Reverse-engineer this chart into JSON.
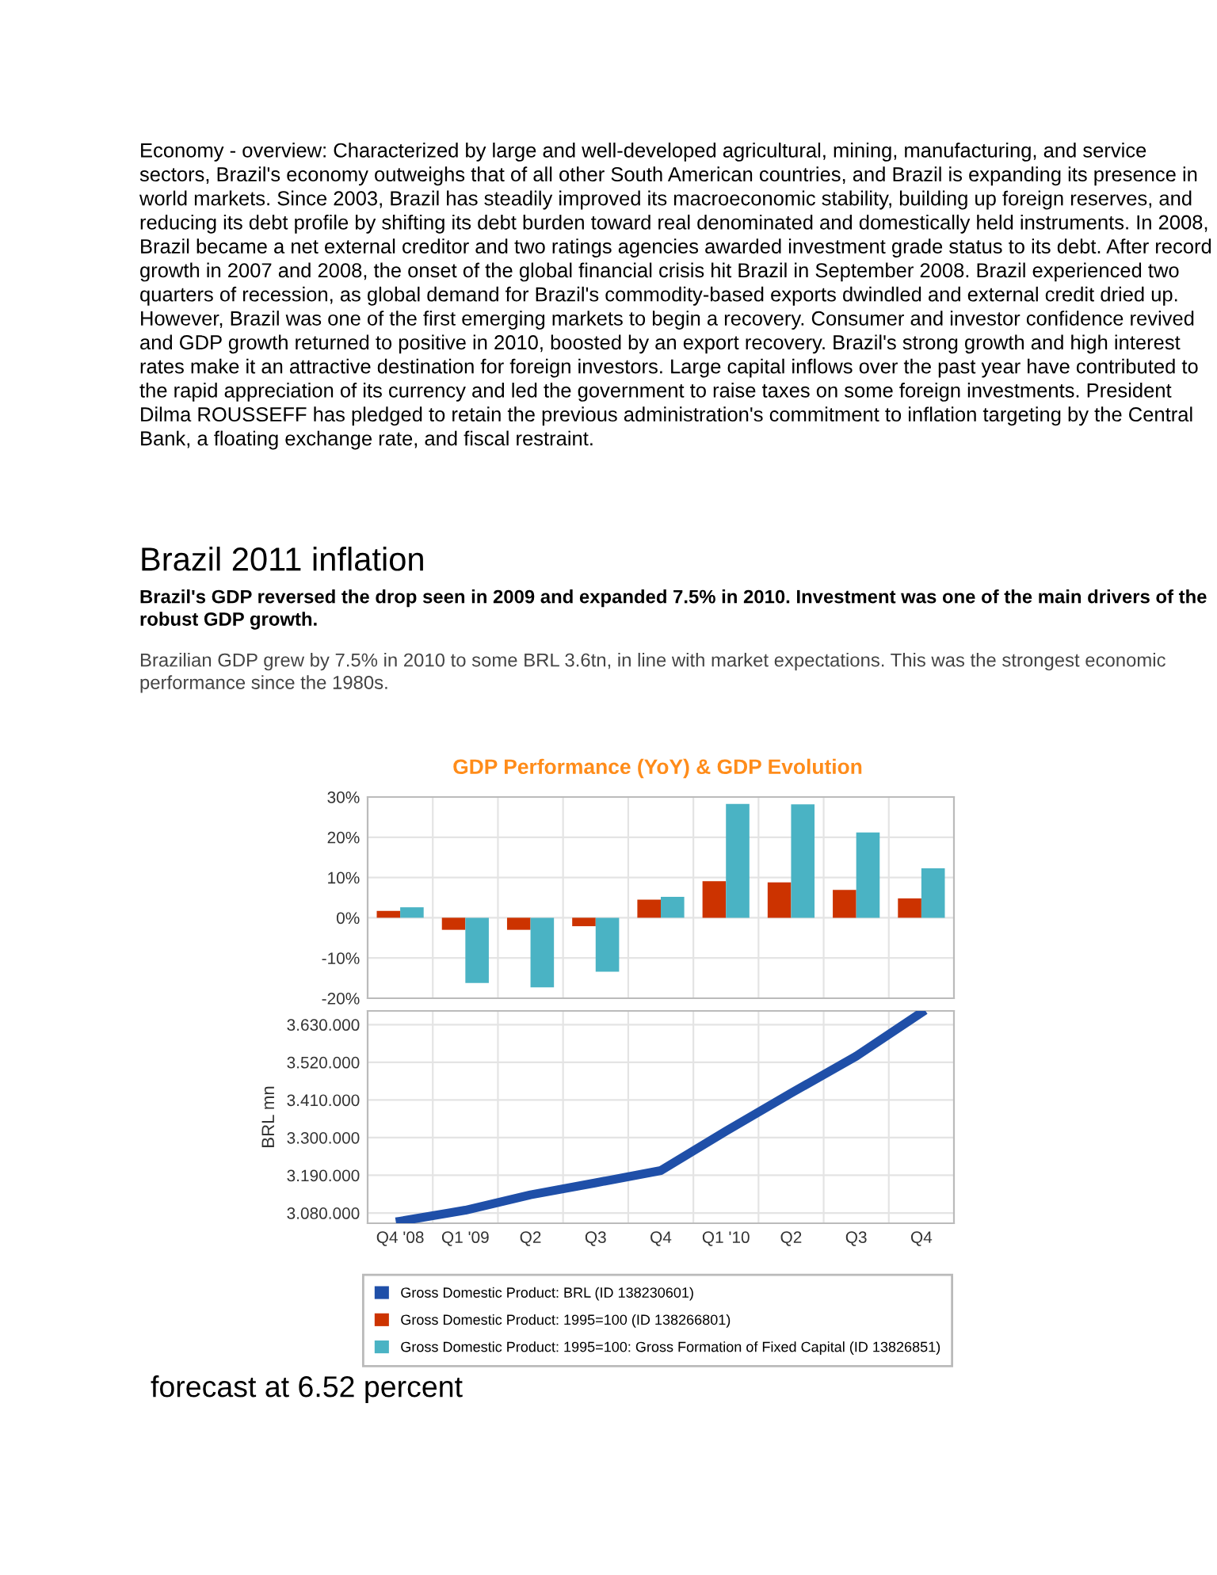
{
  "chart_data": [
    {
      "type": "bar",
      "title": "GDP Performance (YoY) & GDP Evolution",
      "annotations": [
        "Economy - overview: Characterized by large and well-developed agricultural, mining, manufacturing, and service sectors, Brazil's economy outweighs that of all other South American countries, and Brazil is expanding its presence in world markets. Since 2003, Brazil has steadily improved its macroeconomic stability, building up foreign reserves, and reducing its debt profile by shifting its debt burden toward real denominated and domestically held instruments. In 2008, Brazil became a net external creditor and two ratings agencies awarded investment grade status to its debt. After record growth in 2007 and 2008, the onset of the global financial crisis hit Brazil in September 2008. Brazil experienced two quarters of recession, as global demand for Brazil's commodity-based exports dwindled and external credit dried up. However, Brazil was one of the first emerging markets to begin a recovery. Consumer and investor confidence revived and GDP growth returned to positive in 2010, boosted by an export recovery. Brazil's strong growth and high interest rates make it an attractive destination for foreign investors. Large capital inflows over the past year have contributed to the rapid appreciation of its currency and led the government to raise taxes on some foreign investments. President Dilma ROUSSEFF has pledged to retain the previous administration's commitment to inflation targeting by the Central Bank, a floating exchange rate, and fiscal restraint.",
        "Brazil 2011 inflation",
        "Brazil's GDP reversed the drop seen in 2009 and expanded 7.5% in 2010. Investment was one of the main drivers of the robust GDP growth.",
        "Brazilian GDP grew by 7.5% in 2010 to some BRL 3.6tn, in line with market expectations. This was the strongest economic performance since the 1980s."
      ],
      "categories": [
        null,
        null,
        null,
        null,
        null,
        null,
        null,
        null,
        null
      ],
      "series": [
        {
          "name": "Gross Domestic Product: 1995=100 (ID 138266801)",
          "color": "#cc3300",
          "values": [
            1.7,
            -3.0,
            -3.0,
            -2.1,
            4.5,
            9.1,
            8.8,
            6.9,
            4.8
          ]
        },
        {
          "name": "Gross Domestic Product: 1995=100: Gross Formation of Fixed Capital (ID 13826851)",
          "color": "#4ab3c4",
          "values": [
            2.6,
            -16.2,
            -17.3,
            -13.4,
            5.2,
            28.3,
            28.2,
            21.2,
            12.3
          ]
        }
      ],
      "ylim": [
        -20,
        30
      ],
      "yticks": [
        {
          "value": 30,
          "label": "30%"
        },
        {
          "value": 20,
          "label": "20%"
        },
        {
          "value": 10,
          "label": "10%"
        },
        {
          "value": 0,
          "label": "0%"
        },
        {
          "value": -10,
          "label": "-10%"
        },
        {
          "value": -20,
          "label": "-20%"
        }
      ],
      "tick_labels": "y",
      "grid": true,
      "legend": "bottom"
    },
    {
      "type": "line",
      "ylabel": "BRL mn",
      "annotations": [
        "forecast at 6.52 percent"
      ],
      "categories": [
        "Q4 '08",
        "Q1 '09",
        "Q2",
        "Q3",
        "Q4",
        "Q1 '10",
        "Q2",
        "Q3",
        "Q4"
      ],
      "series": [
        {
          "name": "Gross Domestic Product: BRL (ID 138230601)",
          "color": "#1f4fa8",
          "values": [
            3056000,
            3088000,
            3133000,
            3168000,
            3204000,
            3319000,
            3430000,
            3538000,
            3665000
          ]
        }
      ],
      "ylim": [
        3050000,
        3670000
      ],
      "yticks": [
        {
          "value": 3080000,
          "label": "3.080.000"
        },
        {
          "value": 3190000,
          "label": "3.190.000"
        },
        {
          "value": 3300000,
          "label": "3.300.000"
        },
        {
          "value": 3410000,
          "label": "3.410.000"
        },
        {
          "value": 3520000,
          "label": "3.520.000"
        },
        {
          "value": 3630000,
          "label": "3.630.000"
        }
      ],
      "grid": true,
      "legend": "bottom",
      "marker": "none",
      "line_style": "solid"
    }
  ]
}
